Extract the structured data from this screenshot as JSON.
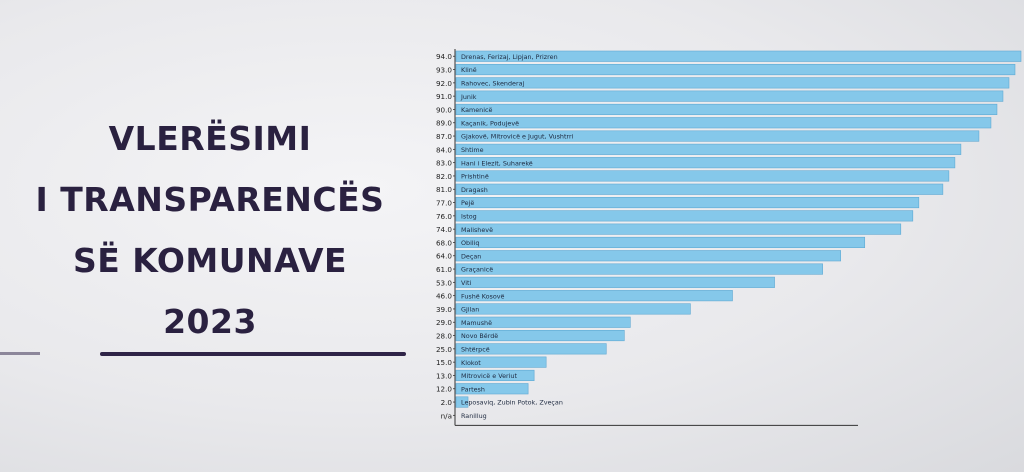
{
  "slide": {
    "title_lines": [
      "VLERËSIMI",
      "I TRANSPARENCËS",
      "SË KOMUNAVE",
      "2023"
    ]
  },
  "colors": {
    "bar": "#85c8ea",
    "bar_edge": "#5fa9d3",
    "title": "#2a2140",
    "axis": "#333333"
  },
  "chart_data": {
    "type": "bar",
    "orientation": "horizontal",
    "title": "",
    "xlabel": "",
    "ylabel": "",
    "xlim": [
      0,
      94
    ],
    "grid": false,
    "legend": "none",
    "categories": [
      "Drenas, Ferizaj, Lipjan, Prizren",
      "Klinë",
      "Rahovec, Skenderaj",
      "Junik",
      "Kamenicë",
      "Kaçanik, Podujevë",
      "Gjakovë, Mitrovicë e Jugut, Vushtrri",
      "Shtime",
      "Hani i Elezit, Suharekë",
      "Prishtinë",
      "Dragash",
      "Pejë",
      "Istog",
      "Malishevë",
      "Obiliq",
      "Deçan",
      "Graçanicë",
      "Viti",
      "Fushë Kosovë",
      "Gjilan",
      "Mamushë",
      "Novo Bërdë",
      "Shtërpcë",
      "Klokot",
      "Mitrovicë e Veriut",
      "Partesh",
      "Leposaviq, Zubin Potok, Zveçan",
      "Ranillug"
    ],
    "value_labels": [
      "94.0",
      "93.0",
      "92.0",
      "91.0",
      "90.0",
      "89.0",
      "87.0",
      "84.0",
      "83.0",
      "82.0",
      "81.0",
      "77.0",
      "76.0",
      "74.0",
      "68.0",
      "64.0",
      "61.0",
      "53.0",
      "46.0",
      "39.0",
      "29.0",
      "28.0",
      "25.0",
      "15.0",
      "13.0",
      "12.0",
      "2.0",
      "n/a"
    ],
    "values": [
      94,
      93,
      92,
      91,
      90,
      89,
      87,
      84,
      83,
      82,
      81,
      77,
      76,
      74,
      68,
      64,
      61,
      53,
      46,
      39,
      29,
      28,
      25,
      15,
      13,
      12,
      2,
      null
    ]
  }
}
